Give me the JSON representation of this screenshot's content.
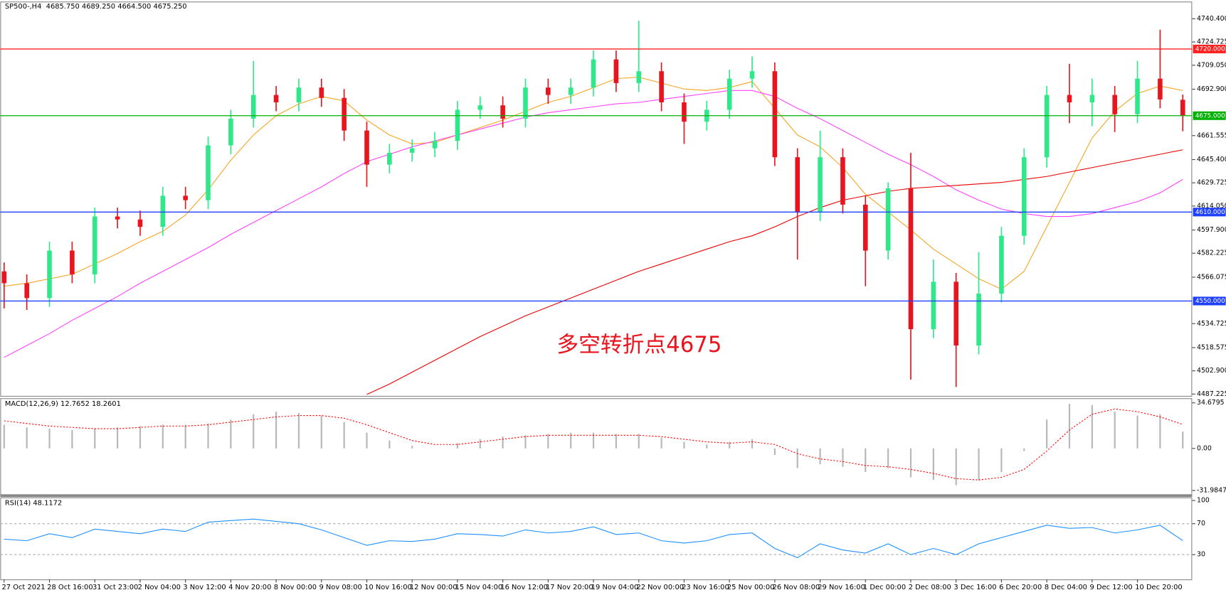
{
  "chart_data": [
    {
      "type": "candlestick",
      "title": "SP500-,H4  4685.750 4689.250 4664.500 4675.250",
      "annotation": "多空转折点4675",
      "categories": [
        "27 Oct 2021",
        null,
        "28 Oct 16:00",
        null,
        "31 Oct 23:00",
        null,
        "2 Nov 04:00",
        null,
        "3 Nov 12:00",
        null,
        "4 Nov 20:00",
        null,
        "8 Nov 00:00",
        null,
        "9 Nov 08:00",
        null,
        "10 Nov 16:00",
        null,
        "12 Nov 00:00",
        null,
        "15 Nov 04:00",
        null,
        "16 Nov 12:00",
        null,
        "17 Nov 20:00",
        null,
        "19 Nov 04:00",
        null,
        "22 Nov 00:00",
        null,
        "23 Nov 16:00",
        null,
        "25 Nov 00:00",
        null,
        "26 Nov 08:00",
        null,
        "29 Nov 16:00",
        null,
        "1 Dec 00:00",
        null,
        "2 Dec 08:00",
        null,
        "3 Dec 16:00",
        null,
        "6 Dec 20:00",
        null,
        "8 Dec 04:00",
        null,
        "9 Dec 12:00",
        null,
        "10 Dec 20:00",
        null,
        null
      ],
      "open": [
        4570,
        4562,
        4552,
        4584,
        4568,
        4607,
        4605,
        4600,
        4621,
        4618,
        4655,
        4673,
        4689,
        4684,
        4694,
        4687,
        4665,
        4642,
        4650,
        4653,
        4658,
        4679,
        4682,
        4673,
        4694,
        4689,
        4694,
        4713,
        4697,
        4705,
        4684,
        4671,
        4679,
        4700,
        4705,
        4647,
        4610,
        4647,
        4615,
        4584,
        4626,
        4531,
        4563,
        4520,
        4555,
        4594,
        4647,
        4689,
        4684,
        4689,
        4676,
        4700,
        4685.75
      ],
      "high": [
        4576,
        4568,
        4590,
        4590,
        4613,
        4613,
        4611,
        4627,
        4627,
        4661,
        4679,
        4712,
        4695,
        4700,
        4700,
        4693,
        4671,
        4656,
        4659,
        4664,
        4685,
        4688,
        4688,
        4700,
        4700,
        4700,
        4719,
        4719,
        4739,
        4711,
        4690,
        4685,
        4706,
        4715,
        4711,
        4653,
        4665,
        4653,
        4621,
        4630,
        4650,
        4578,
        4569,
        4583,
        4600,
        4653,
        4695,
        4710,
        4700,
        4695,
        4712,
        4733,
        4689.25
      ],
      "low": [
        4545,
        4544,
        4546,
        4562,
        4562,
        4599,
        4594,
        4594,
        4612,
        4612,
        4649,
        4667,
        4678,
        4678,
        4681,
        4658,
        4627,
        4636,
        4644,
        4647,
        4652,
        4673,
        4667,
        4667,
        4683,
        4683,
        4688,
        4691,
        4691,
        4678,
        4656,
        4665,
        4673,
        4694,
        4641,
        4578,
        4604,
        4609,
        4560,
        4578,
        4497,
        4525,
        4492,
        4514,
        4549,
        4588,
        4640,
        4670,
        4668,
        4664,
        4670,
        4680,
        4664.5
      ],
      "close": [
        4562,
        4552,
        4584,
        4568,
        4607,
        4605,
        4600,
        4621,
        4618,
        4655,
        4673,
        4689,
        4684,
        4694,
        4687,
        4665,
        4642,
        4650,
        4653,
        4658,
        4679,
        4682,
        4673,
        4694,
        4689,
        4694,
        4713,
        4697,
        4705,
        4684,
        4671,
        4679,
        4700,
        4705,
        4647,
        4610,
        4647,
        4615,
        4584,
        4626,
        4531,
        4563,
        4520,
        4555,
        4594,
        4647,
        4689,
        4684,
        4689,
        4676,
        4700,
        4686,
        4675.25
      ],
      "up_color": "#2ee88a",
      "down_color": "#e8141e",
      "series": [
        {
          "color": "#f5a623",
          "values": [
            4560,
            4562,
            4565,
            4568,
            4575,
            4582,
            4590,
            4597,
            4608,
            4625,
            4645,
            4662,
            4675,
            4683,
            4688,
            4685,
            4672,
            4662,
            4656,
            4657,
            4662,
            4667,
            4672,
            4678,
            4684,
            4688,
            4694,
            4700,
            4701,
            4697,
            4693,
            4692,
            4694,
            4698,
            4680,
            4662,
            4654,
            4640,
            4622,
            4610,
            4598,
            4585,
            4575,
            4565,
            4558,
            4570,
            4600,
            4630,
            4660,
            4678,
            4690,
            4695,
            4692
          ]
        },
        {
          "color": "#ff40ff",
          "values": [
            4512,
            4520,
            4528,
            4537,
            4545,
            4553,
            4562,
            4570,
            4578,
            4586,
            4595,
            4603,
            4611,
            4619,
            4627,
            4636,
            4644,
            4649,
            4654,
            4658,
            4662,
            4666,
            4670,
            4674,
            4677,
            4679,
            4681,
            4683,
            4684,
            4686,
            4688,
            4690,
            4692,
            4692,
            4688,
            4680,
            4673,
            4665,
            4657,
            4649,
            4642,
            4634,
            4625,
            4618,
            4612,
            4609,
            4607,
            4607,
            4609,
            4613,
            4617,
            4623,
            4632
          ]
        },
        {
          "color": "#e80000",
          "values": [
            null,
            null,
            null,
            null,
            null,
            null,
            null,
            null,
            null,
            null,
            null,
            null,
            null,
            null,
            null,
            null,
            4487,
            4494,
            4502,
            4510,
            4518,
            4526,
            4533,
            4540,
            4546,
            4552,
            4558,
            4564,
            4570,
            4575,
            4580,
            4585,
            4590,
            4594,
            4600,
            4607,
            4613,
            4618,
            4621,
            4624,
            4626,
            4627,
            4628,
            4629,
            4630,
            4632,
            4634,
            4637,
            4640,
            4643,
            4646,
            4649,
            4652
          ]
        }
      ],
      "levels": [
        {
          "value": 4720,
          "label": "4720.000",
          "color": "#ff2020"
        },
        {
          "value": 4675,
          "label": "4675.000",
          "color": "#00b000"
        },
        {
          "value": 4610,
          "label": "4610.000",
          "color": "#2040ff"
        },
        {
          "value": 4550,
          "label": "4550.000",
          "color": "#2040ff"
        }
      ],
      "ylim": [
        4486,
        4752
      ],
      "yticks": [
        {
          "value": 4740.4,
          "label": "4740.400"
        },
        {
          "value": 4724.725,
          "label": "4724.725"
        },
        {
          "value": 4709.05,
          "label": "4709.050"
        },
        {
          "value": 4692.9,
          "label": "4692.900"
        },
        {
          "value": 4661.555,
          "label": "4661.555"
        },
        {
          "value": 4645.4,
          "label": "4645.400"
        },
        {
          "value": 4629.725,
          "label": "4629.725"
        },
        {
          "value": 4614.05,
          "label": "4614.050"
        },
        {
          "value": 4597.9,
          "label": "4597.900"
        },
        {
          "value": 4582.225,
          "label": "4582.225"
        },
        {
          "value": 4566.075,
          "label": "4566.075"
        },
        {
          "value": 4534.725,
          "label": "4534.725"
        },
        {
          "value": 4518.575,
          "label": "4518.575"
        },
        {
          "value": 4502.9,
          "label": "4502.900"
        },
        {
          "value": 4487.225,
          "label": "4487.225"
        }
      ]
    },
    {
      "type": "macd",
      "title": "MACD(12,26,9) 12.7652 18.2601",
      "histogram": {
        "color": "#b8b8b8",
        "values": [
          18,
          16,
          15,
          14,
          15,
          16,
          17,
          18,
          18,
          19,
          22,
          26,
          28,
          27,
          25,
          20,
          12,
          6,
          2,
          0,
          4,
          7,
          9,
          10,
          11,
          12,
          12,
          11,
          11,
          8,
          5,
          3,
          5,
          7,
          -5,
          -15,
          -12,
          -14,
          -18,
          -15,
          -22,
          -24,
          -28,
          -24,
          -18,
          -2,
          22,
          34,
          33,
          28,
          25,
          26,
          12.7652
        ]
      },
      "signal": {
        "color": "#ff0000",
        "values": [
          21,
          19,
          17,
          16,
          15,
          15,
          16,
          17,
          17,
          18,
          20,
          22,
          24,
          25,
          25,
          23,
          18,
          12,
          6,
          3,
          3,
          5,
          7,
          9,
          10,
          10,
          10,
          10,
          10,
          9,
          7,
          5,
          4,
          5,
          3,
          -4,
          -8,
          -10,
          -13,
          -14,
          -16,
          -19,
          -23,
          -24,
          -22,
          -16,
          -2,
          14,
          26,
          30,
          28,
          24,
          18.2601
        ]
      },
      "ylim": [
        -34.9,
        38.2
      ],
      "yticks": [
        34.6795,
        {
          "value": 0,
          "label": "0.00"
        },
        -31.9847
      ]
    },
    {
      "type": "line",
      "title": "RSI(14) 48.1172",
      "series": [
        {
          "color": "#1e90ff",
          "values": [
            50,
            48,
            57,
            52,
            63,
            60,
            57,
            63,
            60,
            72,
            74,
            76,
            73,
            70,
            62,
            52,
            42,
            48,
            47,
            50,
            57,
            56,
            54,
            62,
            58,
            60,
            66,
            56,
            58,
            48,
            45,
            48,
            56,
            58,
            38,
            26,
            44,
            36,
            32,
            44,
            30,
            38,
            30,
            44,
            52,
            60,
            68,
            64,
            65,
            58,
            62,
            68,
            48.1172
          ]
        }
      ],
      "levels": [
        70,
        30
      ],
      "ylim": [
        -2,
        104
      ],
      "yticks": [
        100,
        70,
        30
      ]
    }
  ]
}
